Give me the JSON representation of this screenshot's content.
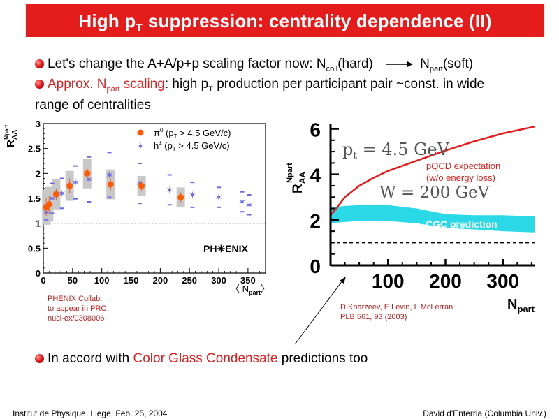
{
  "title": {
    "main": "High p",
    "sub": "T",
    "rest": " suppression: centrality dependence (II)"
  },
  "bullets": {
    "b1": {
      "a": "Let's change the A+A/p+p scaling factor now: N",
      "a_sub": "coll",
      "b": "(hard)",
      "c": "N",
      "c_sub": "part",
      "d": "(soft)"
    },
    "b2": {
      "red_a": "Approx. N",
      "red_sub": "part",
      "red_b": " scaling",
      "a": ": high p",
      "a_sub": "T",
      "b": " production per participant pair ~const. in wide",
      "c": "range of centralities"
    },
    "b3": {
      "a": "In accord with ",
      "red": "Color Glass Condensate",
      "b": " predictions too"
    }
  },
  "notes": {
    "phenix": [
      "PHENIX Collab.",
      "to appear in PRC",
      "nucl-ex/0308006"
    ],
    "kharzeev": [
      "D.Kharzeev, E.Levin, L.McLerran",
      "PLB 561, 93 (2003)"
    ]
  },
  "footer": {
    "left": "Institut de Physique, Liège, Feb. 25, 2004",
    "right": "David d'Enterria (Columbia Univ.)"
  },
  "colors": {
    "accent": "#e51c1c",
    "pi0": "#ff5a00",
    "h": "#6a6ae8",
    "cgc": "#2bd9e6",
    "pqcd": "#e51c1c"
  },
  "icons": {
    "bullet": "red-sphere-bullet",
    "arrow": "right-arrow-icon"
  },
  "chart_data": [
    {
      "type": "scatter",
      "ylabel": "R",
      "ylabel_sub": "AA",
      "ylabel_sup": "Npart",
      "xlabel": "〈 N",
      "xlabel_sub": "part",
      "xlabel_end": "〉",
      "xlim": [
        0,
        380
      ],
      "ylim": [
        0,
        3
      ],
      "x_ticks": [
        "0",
        "50",
        "100",
        "150",
        "200",
        "250",
        "300",
        "350"
      ],
      "y_ticks": [
        "0",
        "0.5",
        "1",
        "1.5",
        "2",
        "2.5",
        "3"
      ],
      "x_tick_values": [
        0,
        50,
        100,
        150,
        200,
        250,
        300,
        350
      ],
      "y_tick_values": [
        0,
        0.5,
        1,
        1.5,
        2,
        2.5,
        3
      ],
      "reference_line": 1,
      "logo": "PH✳ENIX",
      "legend_pi0": {
        "sym": "π",
        "sup": "0",
        "text": " (p",
        "sub": "T",
        "end": " > 4.5 GeV/c)"
      },
      "legend_h": {
        "sym": "h",
        "sup": "±",
        "text": " (p",
        "sub": "T",
        "end": " > 4.5 GeV/c)"
      },
      "series": [
        {
          "name": "π0 (pT > 4.5 GeV/c)",
          "x": [
            5,
            10,
            22,
            45,
            75,
            115,
            168,
            235
          ],
          "y": [
            1.32,
            1.38,
            1.58,
            1.75,
            2.0,
            1.78,
            1.75,
            1.52
          ],
          "err": [
            0.18,
            0.18,
            0.12,
            0.15,
            0.12,
            0.12,
            0.1,
            0.1
          ],
          "box": [
            0.35,
            0.35,
            0.3,
            0.3,
            0.3,
            0.3,
            0.2,
            0.2
          ]
        },
        {
          "name": "h± (pT > 4.5 GeV/c)",
          "x": [
            5,
            15,
            32,
            55,
            78,
            113,
            165,
            216,
            255,
            300,
            340,
            352
          ],
          "y": [
            1.22,
            1.5,
            1.6,
            1.82,
            1.88,
            1.97,
            1.8,
            1.67,
            1.57,
            1.52,
            1.43,
            1.37
          ],
          "err": [
            0.15,
            0.3,
            0.3,
            0.33,
            0.45,
            0.45,
            0.4,
            0.3,
            0.25,
            0.2,
            0.2,
            0.2
          ]
        }
      ]
    },
    {
      "type": "line",
      "ylabel": "R",
      "ylabel_sub": "AA",
      "ylabel_sup": "Npart",
      "xlabel": "N",
      "xlabel_sub": "part",
      "xlim": [
        0,
        355
      ],
      "ylim": [
        0,
        6.2
      ],
      "x_ticks": [
        "100",
        "200",
        "300"
      ],
      "y_ticks": [
        "0",
        "2",
        "4",
        "6"
      ],
      "x_tick_values": [
        100,
        200,
        300
      ],
      "y_tick_values": [
        0,
        2,
        4,
        6
      ],
      "reference_line": 1,
      "text_pt": "p",
      "text_pt_sub": "t",
      "text_pt_rest": " = 4.5 GeV",
      "text_w": "W = 200 GeV",
      "pqcd_label": [
        "pQCD expectation",
        "(w/o energy loss)"
      ],
      "cgc_label": "CGC prediction",
      "series": [
        {
          "name": "pQCD expectation (w/o energy loss)",
          "x": [
            0,
            10,
            25,
            50,
            75,
            100,
            150,
            200,
            250,
            300,
            355
          ],
          "y": [
            2.2,
            2.5,
            3.0,
            3.5,
            3.85,
            4.15,
            4.6,
            5.05,
            5.45,
            5.8,
            6.1
          ]
        },
        {
          "name": "CGC prediction",
          "x": [
            0,
            20,
            50,
            100,
            150,
            200,
            250,
            300,
            355
          ],
          "y_low": [
            1.85,
            1.9,
            1.95,
            1.95,
            1.85,
            1.65,
            1.58,
            1.5,
            1.45
          ],
          "y_high": [
            2.55,
            2.6,
            2.65,
            2.65,
            2.5,
            2.25,
            2.2,
            2.2,
            2.15
          ]
        }
      ]
    }
  ]
}
